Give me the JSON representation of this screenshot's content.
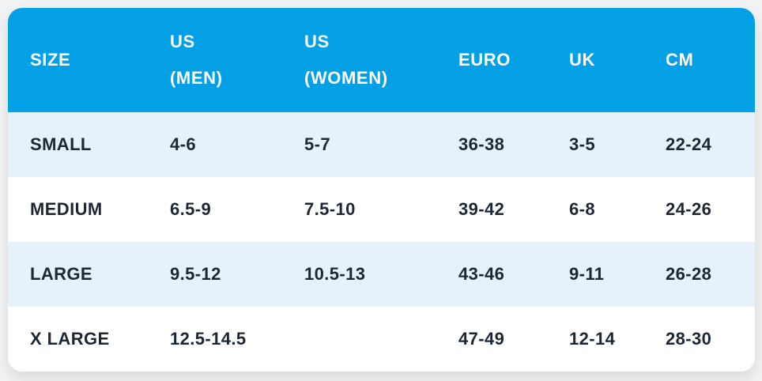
{
  "colors": {
    "header_bg": "#04A0E6",
    "row_alt_bg": "#E7F1FA",
    "row_bg": "#FFFFFF",
    "header_text": "#FFFFFF",
    "cell_text": "#1C2733",
    "page_bg": "#F1F2F3"
  },
  "header": {
    "cells": [
      {
        "lines": [
          "SIZE"
        ]
      },
      {
        "lines": [
          "US",
          "(MEN)"
        ]
      },
      {
        "lines": [
          "US",
          "(WOMEN)"
        ]
      },
      {
        "lines": [
          "EURO"
        ]
      },
      {
        "lines": [
          "UK"
        ]
      },
      {
        "lines": [
          "CM"
        ]
      }
    ]
  },
  "rows": [
    {
      "size": "SMALL",
      "us_men": "4-6",
      "us_women": "5-7",
      "euro": "36-38",
      "uk": "3-5",
      "cm": "22-24"
    },
    {
      "size": "MEDIUM",
      "us_men": "6.5-9",
      "us_women": "7.5-10",
      "euro": "39-42",
      "uk": "6-8",
      "cm": "24-26"
    },
    {
      "size": "LARGE",
      "us_men": "9.5-12",
      "us_women": "10.5-13",
      "euro": "43-46",
      "uk": "9-11",
      "cm": "26-28"
    },
    {
      "size": "X LARGE",
      "us_men": "12.5-14.5",
      "us_women": "",
      "euro": "47-49",
      "uk": "12-14",
      "cm": "28-30"
    }
  ],
  "chart_data": {
    "type": "table",
    "title": "Size chart",
    "columns": [
      "SIZE",
      "US (MEN)",
      "US (WOMEN)",
      "EURO",
      "UK",
      "CM"
    ],
    "rows": [
      [
        "SMALL",
        "4-6",
        "5-7",
        "36-38",
        "3-5",
        "22-24"
      ],
      [
        "MEDIUM",
        "6.5-9",
        "7.5-10",
        "39-42",
        "6-8",
        "24-26"
      ],
      [
        "LARGE",
        "9.5-12",
        "10.5-13",
        "43-46",
        "9-11",
        "26-28"
      ],
      [
        "X LARGE",
        "12.5-14.5",
        "",
        "47-49",
        "12-14",
        "28-30"
      ]
    ]
  }
}
